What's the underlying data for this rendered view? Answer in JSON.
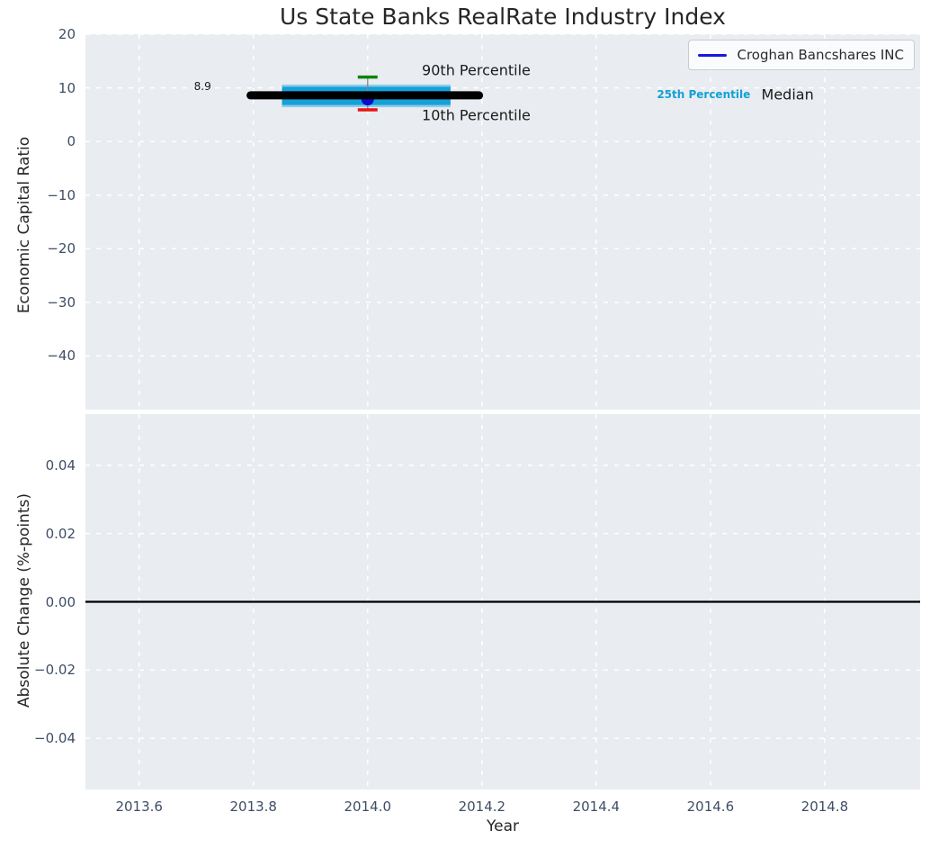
{
  "title": "Us State Banks RealRate Industry Index",
  "legend": {
    "label": "Croghan Bancshares INC",
    "line_color": "#1717dd"
  },
  "axes": {
    "x": {
      "label": "Year",
      "tick_labels": [
        "2013.6",
        "2013.8",
        "2014.0",
        "2014.2",
        "2014.4",
        "2014.6",
        "2014.8"
      ],
      "tick_values": [
        2013.6,
        2013.8,
        2014.0,
        2014.2,
        2014.4,
        2014.6,
        2014.8
      ],
      "range": [
        2013.506,
        2014.967
      ]
    },
    "y_top": {
      "label": "Economic Capital Ratio",
      "tick_labels": [
        "20",
        "10",
        "0",
        "−10",
        "−20",
        "−30",
        "−40"
      ],
      "tick_values": [
        20,
        10,
        0,
        -10,
        -20,
        -30,
        -40
      ],
      "range": [
        -50,
        20
      ]
    },
    "y_bottom": {
      "label": "Absolute Change (%-points)",
      "tick_labels": [
        "0.04",
        "0.02",
        "0.00",
        "−0.02",
        "−0.04"
      ],
      "tick_values": [
        0.04,
        0.02,
        0.0,
        -0.02,
        -0.04
      ],
      "range": [
        -0.055,
        0.055
      ]
    }
  },
  "chart_data": [
    {
      "type": "line",
      "title": "Economic Capital Ratio vs industry percentiles",
      "series": [
        {
          "name": "Croghan Bancshares INC",
          "x": [
            2014.0
          ],
          "y": [
            8.9
          ],
          "color": "#0b0bcf",
          "value_label": "8.9"
        }
      ],
      "industry": {
        "year": 2014.0,
        "median": 8.6,
        "median_span": [
          2013.795,
          2014.195
        ],
        "p75": 10.2,
        "p25": 6.8,
        "band_span": [
          2013.85,
          2014.145
        ],
        "p90": 12.0,
        "p10": 5.9
      },
      "annotations": [
        {
          "text": "8.9",
          "x": 2013.711,
          "y": 10.3,
          "size": 12,
          "weight": "normal",
          "color": "#1a1a1a"
        },
        {
          "text": "90th Percentile",
          "x": 2014.19,
          "y": 13.3,
          "size": 16,
          "weight": "normal",
          "color": "#1a1a1a"
        },
        {
          "text": "10th Percentile",
          "x": 2014.19,
          "y": 4.9,
          "size": 16,
          "weight": "normal",
          "color": "#1a1a1a"
        },
        {
          "text": "25th Percentile",
          "x": 2014.588,
          "y": 8.75,
          "size": 12,
          "weight": "bold",
          "color": "#14a0d6"
        },
        {
          "text": "Median",
          "x": 2014.735,
          "y": 8.7,
          "size": 16,
          "weight": "normal",
          "color": "#1a1a1a"
        }
      ],
      "colors": {
        "band": "#14a1d9",
        "band_edge": "#8accе6",
        "median_line": "#000000",
        "p90_cap": "#088408",
        "p10_cap": "#e81414",
        "connector": "#888888",
        "marker": "#0b0bcf"
      },
      "legend_position": "upper right",
      "grid": "dashed-white"
    },
    {
      "type": "line",
      "title": "Absolute Change (%-points)",
      "series": [],
      "zero_line": 0.0,
      "zero_line_color": "#000000",
      "grid": "dashed-white"
    }
  ]
}
